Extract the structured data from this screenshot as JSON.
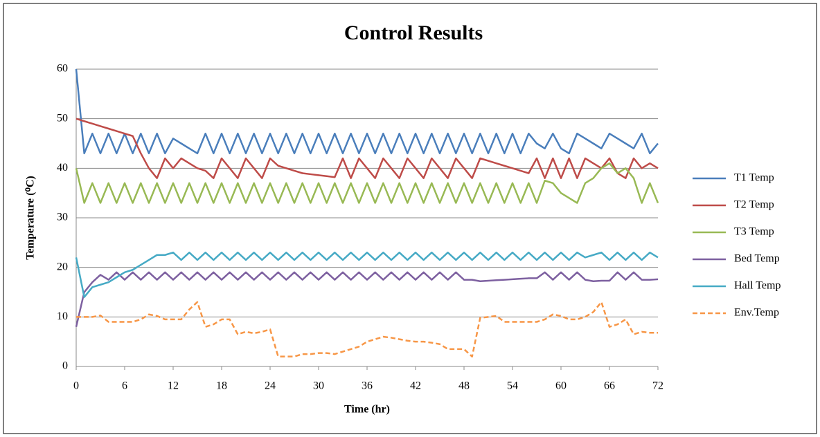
{
  "chart_data": {
    "type": "line",
    "title": "Control Results",
    "x_label": "Time (hr)",
    "y_label": "Temperature (⁰C)",
    "xlim": [
      0,
      72
    ],
    "xticks": [
      0,
      6,
      12,
      18,
      24,
      30,
      36,
      42,
      48,
      54,
      60,
      66,
      72
    ],
    "ylim": [
      0,
      60
    ],
    "yticks": [
      0,
      10,
      20,
      30,
      40,
      50,
      60
    ],
    "grid": true,
    "legend": "right",
    "x": [
      0,
      1,
      2,
      3,
      4,
      5,
      6,
      7,
      8,
      9,
      10,
      11,
      12,
      13,
      14,
      15,
      16,
      17,
      18,
      19,
      20,
      21,
      22,
      23,
      24,
      25,
      26,
      27,
      28,
      29,
      30,
      31,
      32,
      33,
      34,
      35,
      36,
      37,
      38,
      39,
      40,
      41,
      42,
      43,
      44,
      45,
      46,
      47,
      48,
      49,
      50,
      51,
      52,
      53,
      54,
      55,
      56,
      57,
      58,
      59,
      60,
      61,
      62,
      63,
      64,
      65,
      66,
      67,
      68,
      69,
      70,
      71,
      72
    ],
    "series": [
      {
        "name": "T1 Temp",
        "color": "#4a7ebb",
        "values": [
          60,
          43,
          47,
          43,
          47,
          43,
          47,
          43,
          47,
          43,
          47,
          43,
          46,
          45,
          44,
          43,
          47,
          43,
          47,
          43,
          47,
          43,
          47,
          43,
          47,
          43,
          47,
          43,
          47,
          43,
          47,
          43,
          47,
          43,
          47,
          43,
          47,
          43,
          47,
          43,
          47,
          43,
          47,
          43,
          47,
          43,
          47,
          43,
          47,
          43,
          47,
          43,
          47,
          43,
          47,
          43,
          47,
          45,
          44,
          47,
          44,
          43,
          47,
          46,
          45,
          44,
          47,
          46,
          45,
          44,
          47,
          43,
          45
        ]
      },
      {
        "name": "T2 Temp",
        "color": "#be4b48",
        "values": [
          50,
          49.5,
          49,
          48.5,
          48,
          47.5,
          47,
          46.5,
          43,
          40,
          38,
          42,
          40,
          42,
          41,
          40,
          39.5,
          38,
          42,
          40,
          38,
          42,
          40,
          38,
          42,
          40.5,
          40,
          39.5,
          39,
          38.8,
          38.6,
          38.4,
          38.2,
          42,
          38,
          42,
          40,
          38,
          42,
          40,
          38,
          42,
          40,
          38,
          42,
          40,
          38,
          42,
          40,
          38,
          42,
          41.5,
          41,
          40.5,
          40,
          39.5,
          39,
          42,
          38,
          42,
          38,
          42,
          38,
          42,
          41,
          40,
          42,
          39,
          38,
          42,
          40,
          41,
          40
        ]
      },
      {
        "name": "T3 Temp",
        "color": "#98b954",
        "values": [
          40,
          33,
          37,
          33,
          37,
          33,
          37,
          33,
          37,
          33,
          37,
          33,
          37,
          33,
          37,
          33,
          37,
          33,
          37,
          33,
          37,
          33,
          37,
          33,
          37,
          33,
          37,
          33,
          37,
          33,
          37,
          33,
          37,
          33,
          37,
          33,
          37,
          33,
          37,
          33,
          37,
          33,
          37,
          33,
          37,
          33,
          37,
          33,
          37,
          33,
          37,
          33,
          37,
          33,
          37,
          33,
          37,
          33,
          37.5,
          37,
          35,
          34,
          33,
          37,
          38,
          40,
          41,
          39,
          40,
          38,
          33,
          37,
          33
        ]
      },
      {
        "name": "Bed Temp",
        "color": "#7d60a0",
        "values": [
          8,
          15,
          17,
          18.5,
          17.5,
          19,
          17.5,
          19,
          17.5,
          19,
          17.5,
          19,
          17.5,
          19,
          17.5,
          19,
          17.5,
          19,
          17.5,
          19,
          17.5,
          19,
          17.5,
          19,
          17.5,
          19,
          17.5,
          19,
          17.5,
          19,
          17.5,
          19,
          17.5,
          19,
          17.5,
          19,
          17.5,
          19,
          17.5,
          19,
          17.5,
          19,
          17.5,
          19,
          17.5,
          19,
          17.5,
          19,
          17.5,
          17.5,
          17.2,
          17.3,
          17.4,
          17.5,
          17.6,
          17.7,
          17.8,
          17.8,
          19,
          17.5,
          19,
          17.5,
          19,
          17.5,
          17.2,
          17.3,
          17.3,
          19,
          17.5,
          19,
          17.5,
          17.5,
          17.6
        ]
      },
      {
        "name": "Hall Temp",
        "color": "#46aac5",
        "values": [
          22,
          14,
          16,
          16.5,
          17,
          18,
          19,
          19.5,
          20.5,
          21.5,
          22.5,
          22.5,
          23,
          21.5,
          23,
          21.5,
          23,
          21.5,
          23,
          21.5,
          23,
          21.5,
          23,
          21.5,
          23,
          21.5,
          23,
          21.5,
          23,
          21.5,
          23,
          21.5,
          23,
          21.5,
          23,
          21.5,
          23,
          21.5,
          23,
          21.5,
          23,
          21.5,
          23,
          21.5,
          23,
          21.5,
          23,
          21.5,
          23,
          21.5,
          23,
          21.5,
          23,
          21.5,
          23,
          21.5,
          23,
          21.5,
          23,
          21.5,
          23,
          21.5,
          23,
          22,
          22.5,
          23,
          21.5,
          23,
          21.5,
          23,
          21.5,
          23,
          22
        ]
      },
      {
        "name": "Env.Temp",
        "color": "#f79646",
        "dash": true,
        "values": [
          10,
          10,
          10,
          10.3,
          9,
          9,
          9,
          9,
          9.5,
          10.5,
          10.2,
          9.5,
          9.5,
          9.5,
          11.5,
          13,
          8,
          8.5,
          9.5,
          9.5,
          6.5,
          7,
          6.7,
          7,
          7.5,
          2,
          2,
          2,
          2.5,
          2.5,
          2.7,
          2.7,
          2.5,
          3,
          3.5,
          4,
          5,
          5.5,
          6,
          5.8,
          5.5,
          5.2,
          5,
          5,
          4.8,
          4.5,
          3.5,
          3.5,
          3.5,
          2,
          9.8,
          10,
          10.2,
          9,
          9,
          9,
          9,
          9,
          9.5,
          10.5,
          10.2,
          9.5,
          9.5,
          10,
          11,
          13,
          8,
          8.5,
          9.5,
          6.5,
          7,
          6.8,
          6.8
        ]
      }
    ]
  }
}
